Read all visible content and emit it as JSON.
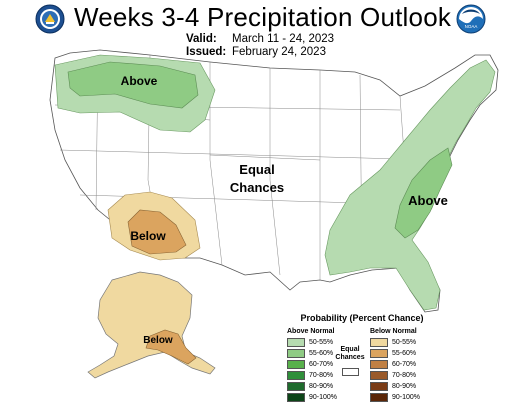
{
  "header": {
    "title": "Weeks 3-4 Precipitation Outlook",
    "valid_label": "Valid:",
    "valid_value": "March 11 - 24, 2023",
    "issued_label": "Issued:",
    "issued_value": "February 24, 2023"
  },
  "logos": {
    "left": "doc-seal-icon",
    "right": "noaa-logo-icon"
  },
  "map_labels": {
    "northwest": "Above",
    "southwest": "Below",
    "center_line1": "Equal",
    "center_line2": "Chances",
    "east": "Above",
    "alaska": "Below"
  },
  "legend": {
    "title": "Probability (Percent Chance)",
    "above_title": "Above Normal",
    "below_title": "Below Normal",
    "equal_line1": "Equal",
    "equal_line2": "Chances",
    "above": [
      {
        "label": "50-55%",
        "color": "#b6dbb0"
      },
      {
        "label": "55-60%",
        "color": "#8fcb84"
      },
      {
        "label": "60-70%",
        "color": "#58b14b"
      },
      {
        "label": "70-80%",
        "color": "#2f8f3a"
      },
      {
        "label": "80-90%",
        "color": "#1f6b2d"
      },
      {
        "label": "90-100%",
        "color": "#0d4418"
      }
    ],
    "below": [
      {
        "label": "50-55%",
        "color": "#f0d9a0"
      },
      {
        "label": "55-60%",
        "color": "#dba45f"
      },
      {
        "label": "60-70%",
        "color": "#c08044"
      },
      {
        "label": "70-80%",
        "color": "#9a5a2a"
      },
      {
        "label": "80-90%",
        "color": "#7a3c16"
      },
      {
        "label": "90-100%",
        "color": "#5a2608"
      }
    ]
  },
  "colors": {
    "above_light": "#b6dbb0",
    "above_mid": "#8fcb84",
    "below_light": "#f0d9a0",
    "below_mid": "#dba45f"
  }
}
